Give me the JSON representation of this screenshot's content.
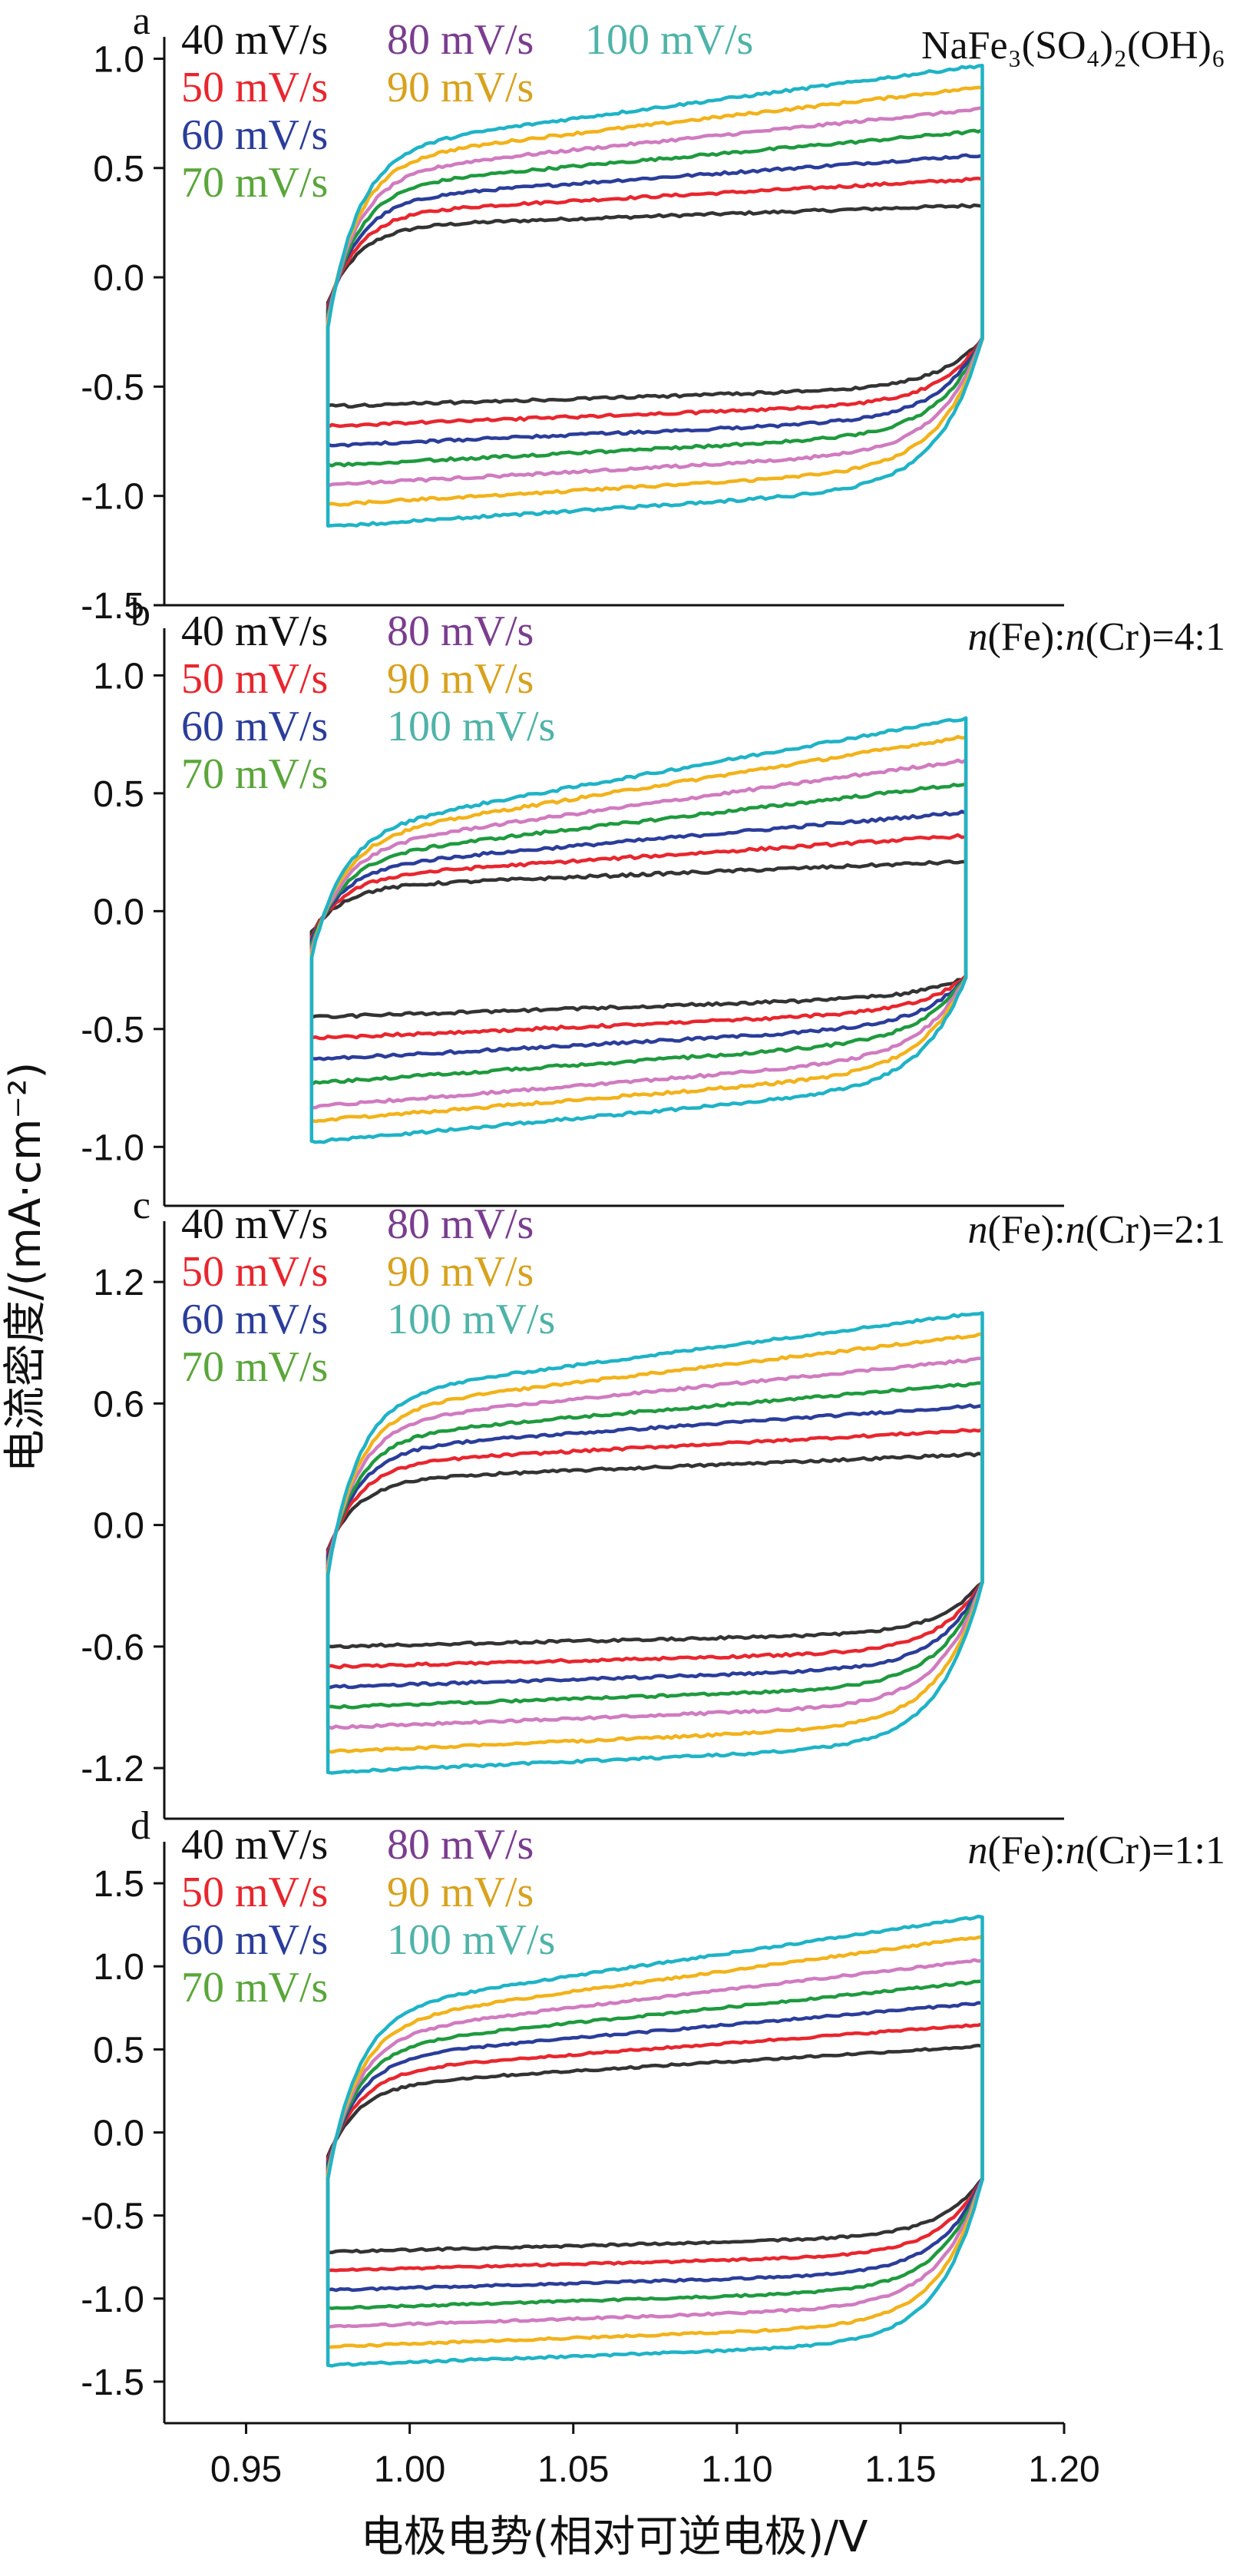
{
  "colors": {
    "40": "#333333",
    "50": "#e8262e",
    "60": "#2b3d9a",
    "70": "#1e9a3e",
    "80": "#d07bc0",
    "90": "#f2b21a",
    "100": "#1fb3c6"
  },
  "legend_text_colors": {
    "40": "#111111",
    "50": "#e8262e",
    "60": "#2b3d9a",
    "70": "#5aa63a",
    "80": "#7a3d8f",
    "90": "#d8a21e",
    "100": "#4fb3a8"
  },
  "xlabel": "电极电势(相对可逆电极)/V",
  "ylabel": "电流密度/(mA·cm⁻²)",
  "chart_data": [
    {
      "type": "line",
      "panel_label": "a",
      "title": "NaFe₃(SO₄)₂(OH)₆",
      "x_range": [
        0.925,
        1.2
      ],
      "ylim": [
        -1.5,
        1.1
      ],
      "yticks": [
        "1.0",
        "0.5",
        "0.0",
        "-0.5",
        "-1.0",
        "-1.5"
      ],
      "ytick_values": [
        1.0,
        0.5,
        0.0,
        -0.5,
        -1.0,
        -1.5
      ],
      "x_start": 0.975,
      "x_end": 1.175,
      "legend": [
        "40 mV/s",
        "50 mV/s",
        "60 mV/s",
        "70 mV/s",
        "80 mV/s",
        "90 mV/s",
        "100 mV/s"
      ],
      "legend_order": [
        "40",
        "50",
        "60",
        "70",
        "80",
        "90",
        "100"
      ],
      "series": [
        {
          "rate": "40",
          "anodic_start": 0.23,
          "anodic_end": 0.33,
          "cathodic_start": -0.59,
          "cathodic_end": -0.5
        },
        {
          "rate": "50",
          "anodic_start": 0.29,
          "anodic_end": 0.45,
          "cathodic_start": -0.68,
          "cathodic_end": -0.57
        },
        {
          "rate": "60",
          "anodic_start": 0.35,
          "anodic_end": 0.56,
          "cathodic_start": -0.77,
          "cathodic_end": -0.64
        },
        {
          "rate": "70",
          "anodic_start": 0.41,
          "anodic_end": 0.67,
          "cathodic_start": -0.86,
          "cathodic_end": -0.71
        },
        {
          "rate": "80",
          "anodic_start": 0.47,
          "anodic_end": 0.77,
          "cathodic_start": -0.95,
          "cathodic_end": -0.79
        },
        {
          "rate": "90",
          "anodic_start": 0.53,
          "anodic_end": 0.87,
          "cathodic_start": -1.04,
          "cathodic_end": -0.87
        },
        {
          "rate": "100",
          "anodic_start": 0.58,
          "anodic_end": 0.97,
          "cathodic_start": -1.14,
          "cathodic_end": -0.95
        }
      ]
    },
    {
      "type": "line",
      "panel_label": "b",
      "title": "n(Fe):n(Cr)=4:1",
      "title_parts": [
        {
          "t": "n",
          "i": true
        },
        {
          "t": "(Fe):",
          "i": false
        },
        {
          "t": "n",
          "i": true
        },
        {
          "t": "(Cr)=4:1",
          "i": false
        }
      ],
      "x_range": [
        0.925,
        1.2
      ],
      "ylim": [
        -1.25,
        1.2
      ],
      "yticks": [
        "1.0",
        "0.5",
        "0.0",
        "-0.5",
        "-1.0"
      ],
      "ytick_values": [
        1.0,
        0.5,
        0.0,
        -0.5,
        -1.0
      ],
      "x_start": 0.97,
      "x_end": 1.17,
      "legend": [
        "40 mV/s",
        "50 mV/s",
        "60 mV/s",
        "70 mV/s",
        "80 mV/s",
        "90 mV/s",
        "100 mV/s"
      ],
      "legend_order": [
        "40",
        "50",
        "60",
        "70",
        "80",
        "90",
        "100"
      ],
      "series": [
        {
          "rate": "40",
          "anodic_start": 0.1,
          "anodic_end": 0.21,
          "cathodic_start": -0.45,
          "cathodic_end": -0.36
        },
        {
          "rate": "50",
          "anodic_start": 0.14,
          "anodic_end": 0.32,
          "cathodic_start": -0.54,
          "cathodic_end": -0.42
        },
        {
          "rate": "60",
          "anodic_start": 0.18,
          "anodic_end": 0.42,
          "cathodic_start": -0.63,
          "cathodic_end": -0.48
        },
        {
          "rate": "70",
          "anodic_start": 0.22,
          "anodic_end": 0.54,
          "cathodic_start": -0.73,
          "cathodic_end": -0.54
        },
        {
          "rate": "80",
          "anodic_start": 0.26,
          "anodic_end": 0.64,
          "cathodic_start": -0.83,
          "cathodic_end": -0.61
        },
        {
          "rate": "90",
          "anodic_start": 0.3,
          "anodic_end": 0.74,
          "cathodic_start": -0.89,
          "cathodic_end": -0.67
        },
        {
          "rate": "100",
          "anodic_start": 0.33,
          "anodic_end": 0.82,
          "cathodic_start": -0.98,
          "cathodic_end": -0.73
        }
      ]
    },
    {
      "type": "line",
      "panel_label": "c",
      "title": "n(Fe):n(Cr)=2:1",
      "title_parts": [
        {
          "t": "n",
          "i": true
        },
        {
          "t": "(Fe):",
          "i": false
        },
        {
          "t": "n",
          "i": true
        },
        {
          "t": "(Cr)=2:1",
          "i": false
        }
      ],
      "x_range": [
        0.925,
        1.2
      ],
      "ylim": [
        -1.45,
        1.5
      ],
      "yticks": [
        "1.2",
        "0.6",
        "0.0",
        "-0.6",
        "-1.2"
      ],
      "ytick_values": [
        1.2,
        0.6,
        0.0,
        -0.6,
        -1.2
      ],
      "x_start": 0.975,
      "x_end": 1.175,
      "legend": [
        "40 mV/s",
        "50 mV/s",
        "60 mV/s",
        "70 mV/s",
        "80 mV/s",
        "90 mV/s",
        "100 mV/s"
      ],
      "legend_order": [
        "40",
        "50",
        "60",
        "70",
        "80",
        "90",
        "100"
      ],
      "series": [
        {
          "rate": "40",
          "anodic_start": 0.22,
          "anodic_end": 0.35,
          "cathodic_start": -0.6,
          "cathodic_end": -0.53
        },
        {
          "rate": "50",
          "anodic_start": 0.3,
          "anodic_end": 0.47,
          "cathodic_start": -0.7,
          "cathodic_end": -0.62
        },
        {
          "rate": "60",
          "anodic_start": 0.37,
          "anodic_end": 0.59,
          "cathodic_start": -0.8,
          "cathodic_end": -0.7
        },
        {
          "rate": "70",
          "anodic_start": 0.43,
          "anodic_end": 0.7,
          "cathodic_start": -0.9,
          "cathodic_end": -0.79
        },
        {
          "rate": "80",
          "anodic_start": 0.5,
          "anodic_end": 0.82,
          "cathodic_start": -1.0,
          "cathodic_end": -0.88
        },
        {
          "rate": "90",
          "anodic_start": 0.56,
          "anodic_end": 0.94,
          "cathodic_start": -1.12,
          "cathodic_end": -0.98
        },
        {
          "rate": "100",
          "anodic_start": 0.63,
          "anodic_end": 1.05,
          "cathodic_start": -1.22,
          "cathodic_end": -1.08
        }
      ]
    },
    {
      "type": "line",
      "panel_label": "d",
      "title": "n(Fe):n(Cr)=1:1",
      "title_parts": [
        {
          "t": "n",
          "i": true
        },
        {
          "t": "(Fe):",
          "i": false
        },
        {
          "t": "n",
          "i": true
        },
        {
          "t": "(Cr)=1:1",
          "i": false
        }
      ],
      "x_range": [
        0.925,
        1.2
      ],
      "ylim": [
        -1.75,
        1.75
      ],
      "yticks": [
        "1.5",
        "1.0",
        "0.5",
        "0.0",
        "-0.5",
        "-1.0",
        "-1.5"
      ],
      "ytick_values": [
        1.5,
        1.0,
        0.5,
        0.0,
        -0.5,
        -1.0,
        -1.5
      ],
      "xticks": [
        "0.95",
        "1.00",
        "1.05",
        "1.10",
        "1.15",
        "1.20"
      ],
      "xtick_values": [
        0.95,
        1.0,
        1.05,
        1.1,
        1.15,
        1.2
      ],
      "x_start": 0.975,
      "x_end": 1.175,
      "legend": [
        "40 mV/s",
        "50 mV/s",
        "60 mV/s",
        "70 mV/s",
        "80 mV/s",
        "90 mV/s",
        "100 mV/s"
      ],
      "legend_order": [
        "40",
        "50",
        "60",
        "70",
        "80",
        "90",
        "100"
      ],
      "series": [
        {
          "rate": "40",
          "anodic_start": 0.28,
          "anodic_end": 0.52,
          "cathodic_start": -0.72,
          "cathodic_end": -0.62
        },
        {
          "rate": "50",
          "anodic_start": 0.36,
          "anodic_end": 0.65,
          "cathodic_start": -0.83,
          "cathodic_end": -0.73
        },
        {
          "rate": "60",
          "anodic_start": 0.44,
          "anodic_end": 0.78,
          "cathodic_start": -0.95,
          "cathodic_end": -0.84
        },
        {
          "rate": "70",
          "anodic_start": 0.51,
          "anodic_end": 0.91,
          "cathodic_start": -1.06,
          "cathodic_end": -0.94
        },
        {
          "rate": "80",
          "anodic_start": 0.58,
          "anodic_end": 1.04,
          "cathodic_start": -1.17,
          "cathodic_end": -1.04
        },
        {
          "rate": "90",
          "anodic_start": 0.65,
          "anodic_end": 1.18,
          "cathodic_start": -1.29,
          "cathodic_end": -1.15
        },
        {
          "rate": "100",
          "anodic_start": 0.73,
          "anodic_end": 1.3,
          "cathodic_start": -1.4,
          "cathodic_end": -1.26
        }
      ]
    }
  ]
}
